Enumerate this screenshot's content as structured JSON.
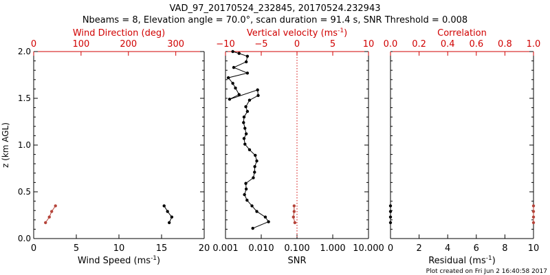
{
  "colors": {
    "black": "#000000",
    "red": "#d00000",
    "marker_red": "#b5443a"
  },
  "title_line1": "VAD_97_20170524_232845, 20170524.232943",
  "title_line2": "Nbeams = 8, Elevation angle = 70.0°, scan duration = 91.4 s, SNR Threshold = 0.008",
  "footer": "Plot created on Fri Jun  2 16:40:58 2017",
  "chart_data": [
    {
      "type": "scatter",
      "ylabel": "z (km AGL)",
      "ylim": [
        0,
        2.0
      ],
      "yticks": [
        "0.0",
        "0.5",
        "1.0",
        "1.5",
        "2.0"
      ],
      "ytick_values": [
        0,
        0.5,
        1.0,
        1.5,
        2.0
      ],
      "xlabel_bottom_pre": "Wind Speed (ms",
      "xlabel_bottom_exp": "-1",
      "xlabel_bottom_post": ")",
      "xlim_bottom": [
        0,
        20
      ],
      "xticks_bottom": [
        "0",
        "5",
        "10",
        "15",
        "20"
      ],
      "xtick_values_bottom": [
        0,
        5,
        10,
        15,
        20
      ],
      "xlabel_top": "Wind Direction (deg)",
      "xlim_top": [
        0,
        360
      ],
      "xticks_top": [
        "0",
        "100",
        "200",
        "300"
      ],
      "xtick_values_top": [
        0,
        100,
        200,
        300
      ],
      "series": [
        {
          "axis": "bottom",
          "color": "black",
          "line": true,
          "x": [
            15.9,
            16.2,
            15.7,
            15.3
          ],
          "y": [
            0.17,
            0.23,
            0.29,
            0.35
          ]
        },
        {
          "axis": "top",
          "color": "red",
          "line": true,
          "x": [
            25,
            33,
            38,
            46
          ],
          "y": [
            0.17,
            0.23,
            0.29,
            0.35
          ]
        }
      ]
    },
    {
      "type": "line",
      "ylim": [
        0,
        2.0
      ],
      "xlabel_bottom": "SNR",
      "xscale_bottom": "log",
      "xlim_bottom": [
        0.001,
        10
      ],
      "xticks_bottom": [
        "0.001",
        "0.010",
        "0.100",
        "1.000",
        "10.000"
      ],
      "xtick_values_bottom": [
        0.001,
        0.01,
        0.1,
        1,
        10
      ],
      "xlabel_top_pre": "Vertical velocity (ms",
      "xlabel_top_exp": "-1",
      "xlabel_top_post": ")",
      "xlim_top": [
        -10,
        10
      ],
      "xticks_top": [
        "−10",
        "−5",
        "0",
        "5",
        "10"
      ],
      "xtick_values_top": [
        -10,
        -5,
        0,
        5,
        10
      ],
      "threshold_line": {
        "axis": "top",
        "x": 0,
        "style": "dotted",
        "color": "red"
      },
      "series": [
        {
          "axis": "bottom",
          "color": "black",
          "line": true,
          "x": [
            0.0058,
            0.016,
            0.013,
            0.0075,
            0.0055,
            0.004,
            0.0034,
            0.0038,
            0.0037,
            0.006,
            0.0065,
            0.0066,
            0.0075,
            0.0068,
            0.0047,
            0.0035,
            0.0033,
            0.0038,
            0.0035,
            0.0032,
            0.0033,
            0.0041,
            0.0037,
            0.0047,
            0.0082,
            0.0079,
            0.0013,
            0.0024,
            0.0019,
            0.0016,
            0.0012,
            0.0041,
            0.0017,
            0.0038,
            0.0041,
            0.0024,
            0.0016
          ],
          "y": [
            0.11,
            0.18,
            0.23,
            0.29,
            0.35,
            0.41,
            0.47,
            0.53,
            0.59,
            0.65,
            0.71,
            0.77,
            0.83,
            0.89,
            0.95,
            1.01,
            1.07,
            1.12,
            1.18,
            1.24,
            1.3,
            1.36,
            1.41,
            1.48,
            1.53,
            1.59,
            1.49,
            1.54,
            1.61,
            1.66,
            1.72,
            1.77,
            1.83,
            1.89,
            1.95,
            1.98,
            2.0
          ]
        },
        {
          "axis": "top",
          "color": "red",
          "line": true,
          "x": [
            -0.3,
            -0.5,
            -0.4,
            -0.4
          ],
          "y": [
            0.17,
            0.23,
            0.29,
            0.35
          ]
        }
      ]
    },
    {
      "type": "scatter",
      "ylim": [
        0,
        2.0
      ],
      "xlabel_bottom_pre": "Residual (ms",
      "xlabel_bottom_exp": "-1",
      "xlabel_bottom_post": ")",
      "xlim_bottom": [
        0,
        10
      ],
      "xticks_bottom": [
        "0",
        "2",
        "4",
        "6",
        "8",
        "10"
      ],
      "xtick_values_bottom": [
        0,
        2,
        4,
        6,
        8,
        10
      ],
      "xlabel_top": "Correlation",
      "xlim_top": [
        0,
        1
      ],
      "xticks_top": [
        "0.0",
        "0.2",
        "0.4",
        "0.6",
        "0.8",
        "1.0"
      ],
      "xtick_values_top": [
        0,
        0.2,
        0.4,
        0.6,
        0.8,
        1.0
      ],
      "series": [
        {
          "axis": "bottom",
          "color": "black",
          "line": true,
          "x": [
            0,
            0,
            0,
            0
          ],
          "y": [
            0.17,
            0.23,
            0.29,
            0.35
          ]
        },
        {
          "axis": "top",
          "color": "red",
          "line": true,
          "x": [
            1.0,
            1.0,
            1.0,
            1.0
          ],
          "y": [
            0.17,
            0.23,
            0.29,
            0.35
          ]
        }
      ]
    }
  ]
}
